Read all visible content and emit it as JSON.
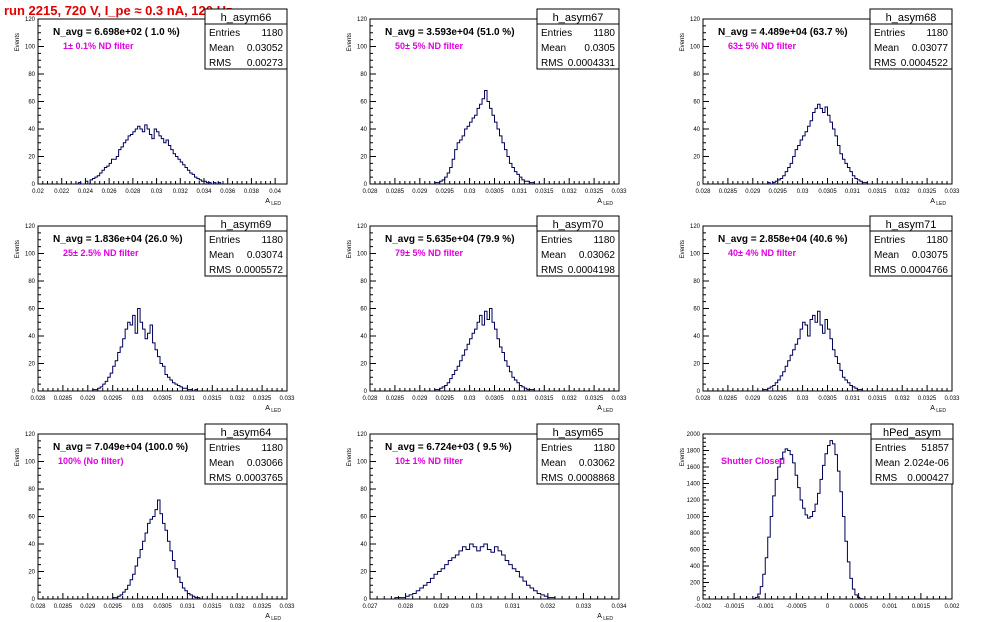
{
  "page": {
    "title": "run 2215,   720 V, I_pe ≈ 0.3 nA, 120 Hz"
  },
  "colors": {
    "title": "#e00000",
    "histogram": "#00005a",
    "filter_label": "#e000e0",
    "axis": "#000000"
  },
  "chart_data": [
    {
      "type": "bar",
      "name": "h_asym66",
      "navg_label": "N_avg = 6.698e+02 ( 1.0 %)",
      "filter_label": "1± 0.1% ND filter",
      "stats": {
        "entries_label": "Entries",
        "entries": "1180",
        "mean_label": "Mean",
        "mean": "0.03052",
        "rms_label": "RMS",
        "rms": "0.00273"
      },
      "ylabel": "Events",
      "xlabel": "A_LED",
      "xlim": [
        0.02,
        0.041
      ],
      "ylim": [
        0,
        120
      ],
      "xticks": [
        "0.02",
        "0.022",
        "0.024",
        "0.026",
        "0.028",
        "0.03",
        "0.032",
        "0.034",
        "0.036",
        "0.038",
        "0.04"
      ],
      "xtick_values": [
        0.02,
        0.022,
        0.024,
        0.026,
        0.028,
        0.03,
        0.032,
        0.034,
        0.036,
        0.038,
        0.04
      ],
      "yticks": [
        "0",
        "20",
        "40",
        "60",
        "80",
        "100",
        "120"
      ],
      "bins": {
        "x0": 0.0234,
        "width": 0.0002,
        "counts": [
          1,
          0,
          0,
          2,
          0,
          3,
          4,
          5,
          6,
          8,
          10,
          12,
          13,
          15,
          18,
          18,
          20,
          25,
          27,
          30,
          32,
          35,
          36,
          38,
          40,
          42,
          40,
          38,
          43,
          40,
          36,
          33,
          40,
          38,
          35,
          33,
          30,
          32,
          28,
          25,
          22,
          20,
          18,
          16,
          14,
          12,
          10,
          8,
          7,
          5,
          4,
          3,
          2,
          2,
          1,
          1,
          0,
          1,
          0,
          1
        ]
      }
    },
    {
      "type": "bar",
      "name": "h_asym67",
      "navg_label": "N_avg = 3.593e+04 (51.0 %)",
      "filter_label": "50± 5% ND filter",
      "stats": {
        "entries_label": "Entries",
        "entries": "1180",
        "mean_label": "Mean",
        "mean": "0.0305",
        "rms_label": "RMS",
        "rms": "0.0004331"
      },
      "ylabel": "Events",
      "xlabel": "A_LED",
      "xlim": [
        0.028,
        0.033
      ],
      "ylim": [
        0,
        120
      ],
      "xticks": [
        "0.028",
        "0.0285",
        "0.029",
        "0.0295",
        "0.03",
        "0.0305",
        "0.031",
        "0.0315",
        "0.032",
        "0.0325",
        "0.033"
      ],
      "xtick_values": [
        0.028,
        0.0285,
        0.029,
        0.0295,
        0.03,
        0.0305,
        0.031,
        0.0315,
        0.032,
        0.0325,
        0.033
      ],
      "yticks": [
        "0",
        "20",
        "40",
        "60",
        "80",
        "100",
        "120"
      ],
      "bins": {
        "x0": 0.0293,
        "width": 5e-05,
        "counts": [
          1,
          1,
          2,
          3,
          5,
          8,
          12,
          18,
          25,
          30,
          32,
          35,
          40,
          42,
          45,
          48,
          50,
          55,
          58,
          62,
          68,
          60,
          55,
          50,
          45,
          40,
          35,
          30,
          25,
          20,
          15,
          12,
          9,
          7,
          5,
          3,
          2,
          2,
          1,
          1
        ]
      }
    },
    {
      "type": "bar",
      "name": "h_asym68",
      "navg_label": "N_avg = 4.489e+04 (63.7 %)",
      "filter_label": "63± 5% ND filter",
      "stats": {
        "entries_label": "Entries",
        "entries": "1180",
        "mean_label": "Mean",
        "mean": "0.03077",
        "rms_label": "RMS",
        "rms": "0.0004522"
      },
      "ylabel": "Events",
      "xlabel": "A_LED",
      "xlim": [
        0.028,
        0.033
      ],
      "ylim": [
        0,
        120
      ],
      "xticks": [
        "0.028",
        "0.0285",
        "0.029",
        "0.0295",
        "0.03",
        "0.0305",
        "0.031",
        "0.0315",
        "0.032",
        "0.0325",
        "0.033"
      ],
      "xtick_values": [
        0.028,
        0.0285,
        0.029,
        0.0295,
        0.03,
        0.0305,
        0.031,
        0.0315,
        0.032,
        0.0325,
        0.033
      ],
      "yticks": [
        "0",
        "20",
        "40",
        "60",
        "80",
        "100",
        "120"
      ],
      "bins": {
        "x0": 0.0293,
        "width": 5e-05,
        "counts": [
          1,
          0,
          1,
          2,
          3,
          4,
          6,
          9,
          12,
          15,
          20,
          25,
          28,
          32,
          35,
          38,
          42,
          46,
          52,
          55,
          58,
          55,
          52,
          56,
          50,
          45,
          40,
          35,
          28,
          22,
          18,
          15,
          12,
          9,
          6,
          4,
          3,
          2,
          1,
          1
        ]
      }
    },
    {
      "type": "bar",
      "name": "h_asym69",
      "navg_label": "N_avg = 1.836e+04 (26.0 %)",
      "filter_label": "25± 2.5% ND filter",
      "stats": {
        "entries_label": "Entries",
        "entries": "1180",
        "mean_label": "Mean",
        "mean": "0.03074",
        "rms_label": "RMS",
        "rms": "0.0005572"
      },
      "ylabel": "Events",
      "xlabel": "A_LED",
      "xlim": [
        0.028,
        0.033
      ],
      "ylim": [
        0,
        120
      ],
      "xticks": [
        "0.028",
        "0.0285",
        "0.029",
        "0.0295",
        "0.03",
        "0.0305",
        "0.031",
        "0.0315",
        "0.032",
        "0.0325",
        "0.033"
      ],
      "xtick_values": [
        0.028,
        0.0285,
        0.029,
        0.0295,
        0.03,
        0.0305,
        0.031,
        0.0315,
        0.032,
        0.0325,
        0.033
      ],
      "yticks": [
        "0",
        "20",
        "40",
        "60",
        "80",
        "100",
        "120"
      ],
      "bins": {
        "x0": 0.0291,
        "width": 5e-05,
        "counts": [
          1,
          1,
          2,
          3,
          5,
          7,
          10,
          13,
          18,
          22,
          28,
          32,
          38,
          45,
          50,
          48,
          55,
          42,
          60,
          50,
          45,
          38,
          42,
          48,
          35,
          30,
          25,
          20,
          18,
          12,
          10,
          8,
          6,
          5,
          4,
          3,
          2,
          2,
          1,
          1,
          0,
          1
        ]
      }
    },
    {
      "type": "bar",
      "name": "h_asym70",
      "navg_label": "N_avg = 5.635e+04 (79.9 %)",
      "filter_label": "79± 5% ND filter",
      "stats": {
        "entries_label": "Entries",
        "entries": "1180",
        "mean_label": "Mean",
        "mean": "0.03062",
        "rms_label": "RMS",
        "rms": "0.0004198"
      },
      "ylabel": "Events",
      "xlabel": "A_LED",
      "xlim": [
        0.028,
        0.033
      ],
      "ylim": [
        0,
        120
      ],
      "xticks": [
        "0.028",
        "0.0285",
        "0.029",
        "0.0295",
        "0.03",
        "0.0305",
        "0.031",
        "0.0315",
        "0.032",
        "0.0325",
        "0.033"
      ],
      "xtick_values": [
        0.028,
        0.0285,
        0.029,
        0.0295,
        0.03,
        0.0305,
        0.031,
        0.0315,
        0.032,
        0.0325,
        0.033
      ],
      "yticks": [
        "0",
        "20",
        "40",
        "60",
        "80",
        "100",
        "120"
      ],
      "bins": {
        "x0": 0.0293,
        "width": 5e-05,
        "counts": [
          1,
          1,
          2,
          3,
          4,
          6,
          9,
          12,
          15,
          18,
          22,
          26,
          30,
          34,
          38,
          42,
          45,
          50,
          55,
          48,
          58,
          52,
          60,
          50,
          45,
          38,
          32,
          28,
          22,
          18,
          14,
          10,
          8,
          6,
          4,
          3,
          2,
          1,
          1,
          1
        ]
      }
    },
    {
      "type": "bar",
      "name": "h_asym71",
      "navg_label": "N_avg = 2.858e+04 (40.6 %)",
      "filter_label": "40± 4% ND filter",
      "stats": {
        "entries_label": "Entries",
        "entries": "1180",
        "mean_label": "Mean",
        "mean": "0.03075",
        "rms_label": "RMS",
        "rms": "0.0004766"
      },
      "ylabel": "Events",
      "xlabel": "A_LED",
      "xlim": [
        0.028,
        0.033
      ],
      "ylim": [
        0,
        120
      ],
      "xticks": [
        "0.028",
        "0.0285",
        "0.029",
        "0.0295",
        "0.03",
        "0.0305",
        "0.031",
        "0.0315",
        "0.032",
        "0.0325",
        "0.033"
      ],
      "xtick_values": [
        0.028,
        0.0285,
        0.029,
        0.0295,
        0.03,
        0.0305,
        0.031,
        0.0315,
        0.032,
        0.0325,
        0.033
      ],
      "yticks": [
        "0",
        "20",
        "40",
        "60",
        "80",
        "100",
        "120"
      ],
      "bins": {
        "x0": 0.0292,
        "width": 5e-05,
        "counts": [
          1,
          1,
          2,
          3,
          4,
          6,
          8,
          11,
          14,
          18,
          22,
          26,
          30,
          34,
          38,
          45,
          50,
          48,
          40,
          52,
          55,
          50,
          58,
          48,
          42,
          52,
          45,
          38,
          30,
          25,
          20,
          15,
          10,
          8,
          6,
          4,
          3,
          2,
          1,
          1
        ]
      }
    },
    {
      "type": "bar",
      "name": "h_asym64",
      "navg_label": "N_avg = 7.049e+04 (100.0 %)",
      "filter_label": "100% (No filter)",
      "stats": {
        "entries_label": "Entries",
        "entries": "1180",
        "mean_label": "Mean",
        "mean": "0.03066",
        "rms_label": "RMS",
        "rms": "0.0003765"
      },
      "ylabel": "Events",
      "xlabel": "A_LED",
      "xlim": [
        0.028,
        0.033
      ],
      "ylim": [
        0,
        120
      ],
      "xticks": [
        "0.028",
        "0.0285",
        "0.029",
        "0.0295",
        "0.03",
        "0.0305",
        "0.031",
        "0.0315",
        "0.032",
        "0.0325",
        "0.033"
      ],
      "xtick_values": [
        0.028,
        0.0285,
        0.029,
        0.0295,
        0.03,
        0.0305,
        0.031,
        0.0315,
        0.032,
        0.0325,
        0.033
      ],
      "yticks": [
        "0",
        "20",
        "40",
        "60",
        "80",
        "100",
        "120"
      ],
      "bins": {
        "x0": 0.0295,
        "width": 5e-05,
        "counts": [
          1,
          1,
          2,
          3,
          5,
          7,
          10,
          14,
          18,
          24,
          30,
          36,
          42,
          48,
          55,
          58,
          60,
          65,
          72,
          62,
          55,
          50,
          42,
          35,
          28,
          22,
          16,
          12,
          8,
          6,
          4,
          3,
          2,
          1,
          1
        ]
      }
    },
    {
      "type": "bar",
      "name": "h_asym65",
      "navg_label": "N_avg = 6.724e+03 ( 9.5 %)",
      "filter_label": "10± 1% ND filter",
      "stats": {
        "entries_label": "Entries",
        "entries": "1180",
        "mean_label": "Mean",
        "mean": "0.03062",
        "rms_label": "RMS",
        "rms": "0.0008868"
      },
      "ylabel": "Events",
      "xlabel": "A_LED",
      "xlim": [
        0.027,
        0.034
      ],
      "ylim": [
        0,
        120
      ],
      "xticks": [
        "0.027",
        "0.028",
        "0.029",
        "0.03",
        "0.031",
        "0.032",
        "0.033",
        "0.034"
      ],
      "xtick_values": [
        0.027,
        0.028,
        0.029,
        0.03,
        0.031,
        0.032,
        0.033,
        0.034
      ],
      "yticks": [
        "0",
        "20",
        "40",
        "60",
        "80",
        "100",
        "120"
      ],
      "bins": {
        "x0": 0.0277,
        "width": 0.0001,
        "counts": [
          1,
          1,
          1,
          2,
          3,
          4,
          6,
          8,
          10,
          12,
          15,
          18,
          20,
          22,
          25,
          28,
          30,
          32,
          35,
          38,
          36,
          40,
          38,
          35,
          38,
          40,
          36,
          34,
          38,
          35,
          32,
          28,
          25,
          22,
          20,
          16,
          13,
          10,
          8,
          6,
          4,
          3,
          2,
          1,
          1
        ]
      }
    },
    {
      "type": "bar",
      "name": "hPed_asym",
      "navg_label": "",
      "filter_label": "Shutter Closed",
      "stats": {
        "entries_label": "Entries",
        "entries": "51857",
        "mean_label": "Mean",
        "mean": "2.024e-06",
        "rms_label": "RMS",
        "rms": "0.000427"
      },
      "ylabel": "Events",
      "xlabel": "",
      "xlim": [
        -0.002,
        0.002
      ],
      "ylim": [
        0,
        2000
      ],
      "xticks": [
        "-0.002",
        "-0.0015",
        "-0.001",
        "-0.0005",
        "0",
        "0.0005",
        "0.001",
        "0.0015",
        "0.002"
      ],
      "xtick_values": [
        -0.002,
        -0.0015,
        -0.001,
        -0.0005,
        0,
        0.0005,
        0.001,
        0.0015,
        0.002
      ],
      "yticks": [
        "0",
        "200",
        "400",
        "600",
        "800",
        "1000",
        "1200",
        "1400",
        "1600",
        "1800",
        "2000"
      ],
      "bins": {
        "x0": -0.0012,
        "width": 4e-05,
        "counts": [
          5,
          20,
          60,
          150,
          300,
          500,
          750,
          1000,
          1250,
          1450,
          1600,
          1700,
          1780,
          1820,
          1800,
          1750,
          1650,
          1500,
          1350,
          1200,
          1100,
          1020,
          980,
          1000,
          1060,
          1150,
          1280,
          1450,
          1620,
          1760,
          1860,
          1920,
          1880,
          1750,
          1550,
          1300,
          1000,
          700,
          450,
          250,
          120,
          50,
          20,
          5
        ]
      }
    }
  ]
}
